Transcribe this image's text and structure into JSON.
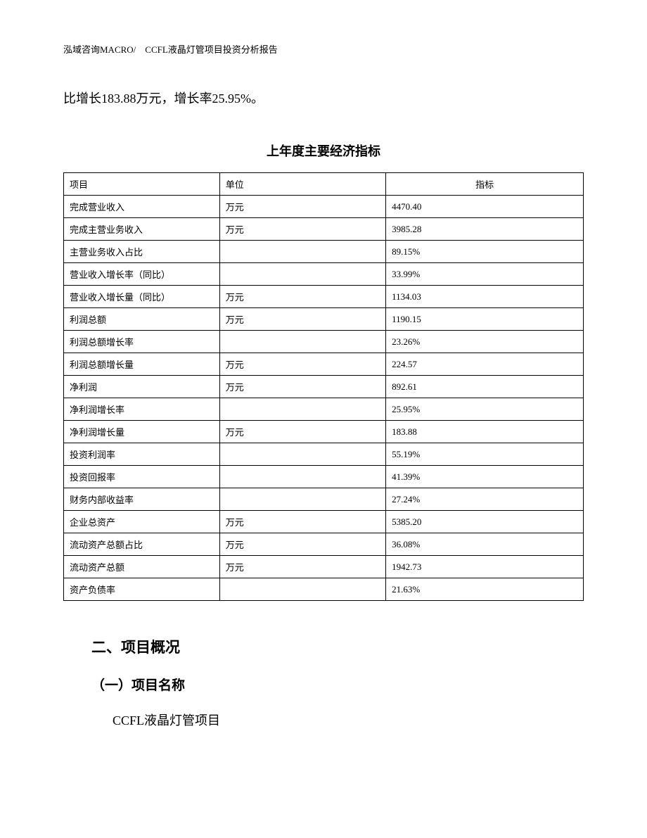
{
  "header": "泓域咨询MACRO/　CCFL液晶灯管项目投资分析报告",
  "intro": "比增长183.88万元，增长率25.95%。",
  "table": {
    "title": "上年度主要经济指标",
    "columns": [
      "项目",
      "单位",
      "指标"
    ],
    "rows": [
      [
        "完成营业收入",
        "万元",
        "4470.40"
      ],
      [
        "完成主营业务收入",
        "万元",
        "3985.28"
      ],
      [
        "主营业务收入占比",
        "",
        "89.15%"
      ],
      [
        "营业收入增长率（同比）",
        "",
        "33.99%"
      ],
      [
        "营业收入增长量（同比）",
        "万元",
        "1134.03"
      ],
      [
        "利润总额",
        "万元",
        "1190.15"
      ],
      [
        "利润总额增长率",
        "",
        "23.26%"
      ],
      [
        "利润总额增长量",
        "万元",
        "224.57"
      ],
      [
        "净利润",
        "万元",
        "892.61"
      ],
      [
        "净利润增长率",
        "",
        "25.95%"
      ],
      [
        "净利润增长量",
        "万元",
        "183.88"
      ],
      [
        "投资利润率",
        "",
        "55.19%"
      ],
      [
        "投资回报率",
        "",
        "41.39%"
      ],
      [
        "财务内部收益率",
        "",
        "27.24%"
      ],
      [
        "企业总资产",
        "万元",
        "5385.20"
      ],
      [
        "流动资产总额占比",
        "万元",
        "36.08%"
      ],
      [
        "流动资产总额",
        "万元",
        "1942.73"
      ],
      [
        "资产负债率",
        "",
        "21.63%"
      ]
    ]
  },
  "section": {
    "heading": "二、项目概况",
    "subheading": "（一）项目名称",
    "content": "CCFL液晶灯管项目"
  }
}
